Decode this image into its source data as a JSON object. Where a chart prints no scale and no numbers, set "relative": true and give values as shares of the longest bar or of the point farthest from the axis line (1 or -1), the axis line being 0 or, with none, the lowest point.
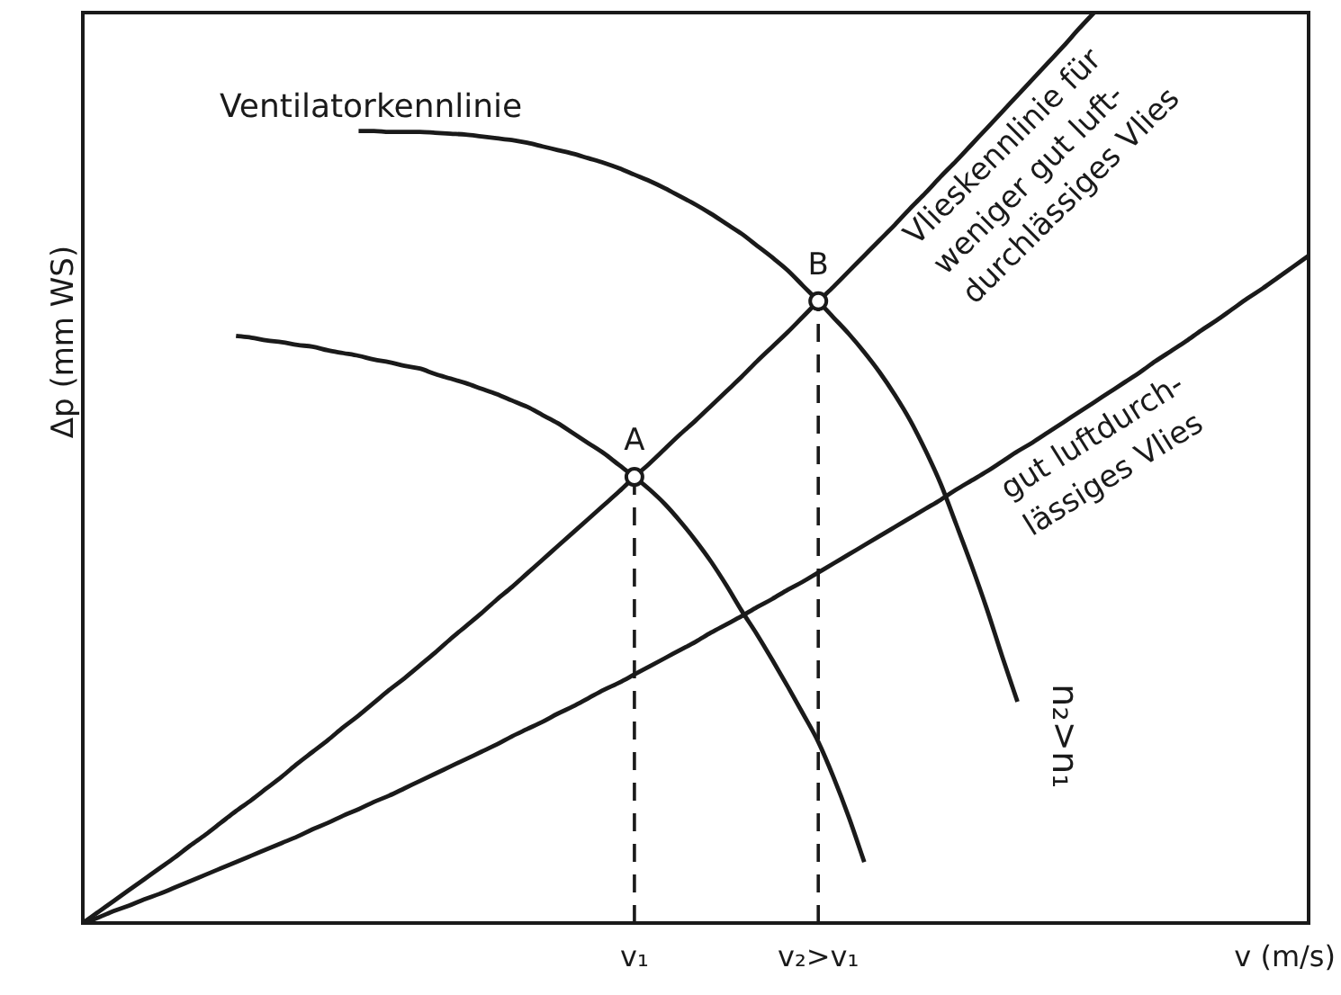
{
  "chart_data": {
    "type": "line",
    "relative": true,
    "xlabel": "v (m/s)",
    "ylabel": "Δp (mm WS)",
    "categories": [
      null,
      null,
      null,
      null,
      null,
      null,
      null,
      null,
      null,
      null,
      null,
      null,
      null,
      null,
      null,
      null,
      null,
      null,
      null,
      null,
      null,
      null,
      null,
      null,
      null,
      null,
      null,
      null,
      null,
      null,
      null,
      null,
      null,
      null,
      null,
      null,
      "v₁",
      null,
      null,
      null,
      null,
      null,
      null,
      null,
      null,
      null,
      null,
      null,
      "v₂>v₁",
      null,
      null,
      null,
      null,
      null,
      null,
      null,
      null,
      null,
      null,
      null,
      null,
      null,
      null,
      null,
      null,
      null,
      null,
      null,
      null,
      null,
      null,
      null,
      null,
      null,
      null,
      null,
      null,
      null,
      null,
      null,
      null
    ],
    "series": [
      {
        "name": "Vlieskennlinie für\nweniger gut luft-\ndurchlässiges Vlies",
        "color": "#1a1a1a",
        "values": [
          0,
          0.012,
          0.024,
          0.036,
          0.048,
          0.06,
          0.072,
          0.085,
          0.097,
          0.11,
          0.123,
          0.135,
          0.148,
          0.161,
          0.175,
          0.188,
          0.201,
          0.215,
          0.228,
          0.242,
          0.256,
          0.269,
          0.283,
          0.297,
          0.312,
          0.326,
          0.34,
          0.355,
          0.369,
          0.384,
          0.399,
          0.414,
          0.429,
          0.444,
          0.459,
          0.474,
          0.49,
          0.505,
          0.521,
          0.537,
          0.552,
          0.568,
          0.584,
          0.6,
          0.617,
          0.633,
          0.649,
          0.666,
          0.683,
          0.699,
          0.716,
          0.733,
          0.75,
          0.767,
          0.785,
          0.802,
          0.82,
          0.837,
          0.855,
          0.873,
          0.891,
          0.909,
          0.927,
          0.945,
          0.963,
          0.982,
          1,
          null,
          null,
          null,
          null,
          null,
          null,
          null,
          null,
          null,
          null,
          null,
          null,
          null,
          null
        ]
      },
      {
        "name": "gut luftdurch-\nlässiges Vlies",
        "color": "#1a1a1a",
        "values": [
          0,
          0.006,
          0.013,
          0.019,
          0.026,
          0.032,
          0.039,
          0.046,
          0.053,
          0.06,
          0.067,
          0.074,
          0.081,
          0.088,
          0.095,
          0.103,
          0.11,
          0.118,
          0.125,
          0.133,
          0.14,
          0.148,
          0.156,
          0.164,
          0.172,
          0.18,
          0.188,
          0.196,
          0.205,
          0.213,
          0.221,
          0.23,
          0.238,
          0.247,
          0.256,
          0.264,
          0.273,
          0.282,
          0.291,
          0.3,
          0.309,
          0.319,
          0.328,
          0.337,
          0.347,
          0.356,
          0.366,
          0.375,
          0.385,
          0.395,
          0.405,
          0.415,
          0.425,
          0.435,
          0.445,
          0.455,
          0.465,
          0.476,
          0.486,
          0.496,
          0.507,
          0.518,
          0.528,
          0.539,
          0.55,
          0.561,
          0.572,
          0.583,
          0.594,
          0.605,
          0.617,
          0.628,
          0.639,
          0.651,
          0.662,
          0.674,
          0.686,
          0.697,
          0.709,
          0.721,
          0.733
        ]
      },
      {
        "color": "#1a1a1a",
        "values": [
          null,
          null,
          null,
          null,
          null,
          null,
          null,
          null,
          null,
          null,
          0.645,
          0.643,
          0.64,
          0.638,
          0.635,
          0.633,
          0.629,
          0.626,
          0.623,
          0.619,
          0.616,
          0.612,
          0.609,
          0.603,
          0.598,
          0.593,
          0.587,
          0.581,
          0.574,
          0.567,
          0.558,
          0.549,
          0.538,
          0.527,
          0.516,
          0.503,
          0.49,
          0.476,
          0.46,
          0.441,
          0.42,
          0.397,
          0.371,
          0.343,
          0.317,
          0.289,
          0.26,
          0.23,
          0.199,
          0.16,
          0.116,
          0.067,
          null,
          null,
          null,
          null,
          null,
          null,
          null,
          null,
          null,
          null,
          null,
          null,
          null,
          null,
          null,
          null,
          null,
          null,
          null,
          null,
          null,
          null,
          null,
          null,
          null,
          null,
          null,
          null,
          null
        ]
      },
      {
        "name": "n₂>n₁",
        "color": "#1a1a1a",
        "values": [
          null,
          null,
          null,
          null,
          null,
          null,
          null,
          null,
          null,
          null,
          null,
          null,
          null,
          null,
          null,
          null,
          null,
          null,
          0.87,
          0.87,
          0.869,
          0.869,
          0.869,
          0.868,
          0.867,
          0.866,
          0.864,
          0.862,
          0.86,
          0.857,
          0.853,
          0.849,
          0.845,
          0.84,
          0.835,
          0.829,
          0.822,
          0.815,
          0.807,
          0.798,
          0.789,
          0.779,
          0.768,
          0.757,
          0.744,
          0.731,
          0.717,
          0.7,
          0.683,
          0.665,
          0.647,
          0.627,
          0.605,
          0.58,
          0.552,
          0.519,
          0.482,
          0.438,
          0.393,
          0.345,
          0.293,
          0.243,
          null,
          null,
          null,
          null,
          null,
          null,
          null,
          null,
          null,
          null,
          null,
          null,
          null,
          null,
          null,
          null,
          null,
          null,
          null
        ]
      },
      {
        "type": "line",
        "line_style": "dashed",
        "color": "#1a1a1a",
        "x": [
          "v₁",
          "v₁"
        ],
        "values": [
          0,
          0.49
        ]
      },
      {
        "type": "line",
        "line_style": "dashed",
        "color": "#1a1a1a",
        "x": [
          "v₂>v₁",
          "v₂>v₁"
        ],
        "values": [
          0,
          0.683
        ]
      },
      {
        "type": "scatter",
        "color": "#1a1a1a",
        "marker": "circle",
        "x": [
          "v₁",
          "v₂>v₁"
        ],
        "values": [
          0.49,
          0.683
        ]
      }
    ],
    "annotations": [
      "Ventilatorkennlinie",
      {
        "text": "A",
        "x": "v₁",
        "y": 0.49
      },
      {
        "text": "B",
        "x": "v₂>v₁",
        "y": 0.683
      }
    ]
  }
}
